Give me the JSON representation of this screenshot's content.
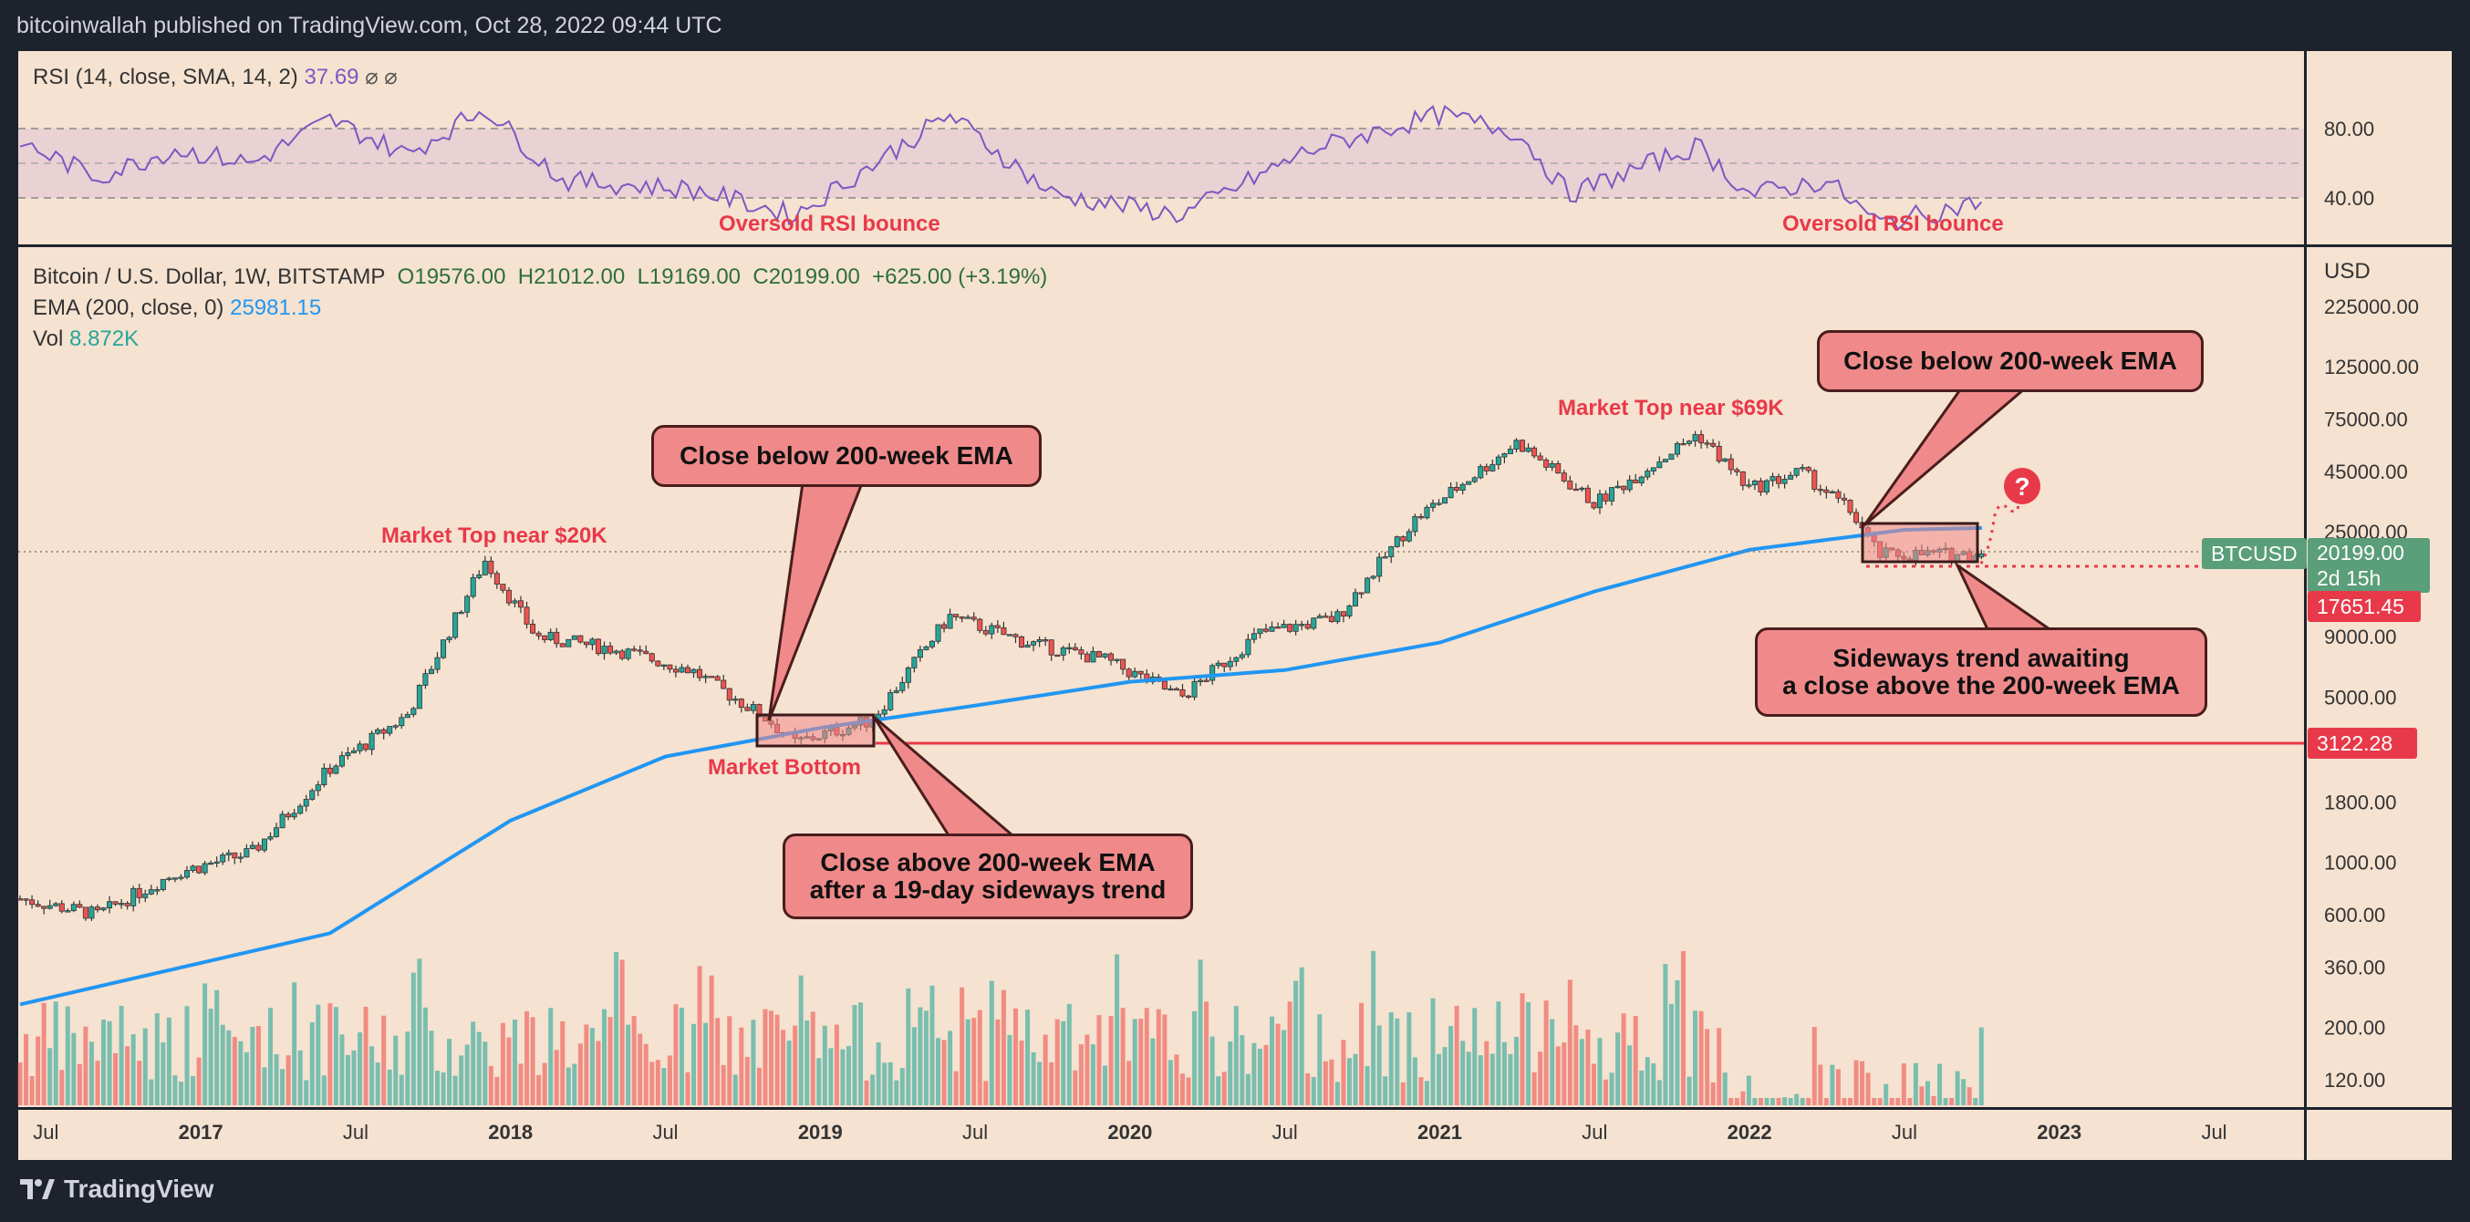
{
  "header": {
    "byline": "bitcoinwallah published on TradingView.com, Oct 28, 2022 09:44 UTC"
  },
  "rsi_panel": {
    "legend": "RSI (14, close, SMA, 14, 2)",
    "value": "37.69",
    "extra": "⌀ ⌀",
    "ticks": [
      "80.00",
      "40.00"
    ],
    "labels": [
      "Oversold RSI bounce",
      "Oversold RSI bounce"
    ]
  },
  "main_panel": {
    "symbol": "Bitcoin / U.S. Dollar, 1W, BITSTAMP",
    "open": "O19576.00",
    "high": "H21012.00",
    "low": "L19169.00",
    "close": "C20199.00",
    "change": "+625.00 (+3.19%)",
    "ema_label": "EMA (200, close, 0)",
    "ema_value": "25981.15",
    "vol_label": "Vol",
    "vol_value": "8.872K",
    "currency": "USD"
  },
  "price_tags": {
    "symbol_badge": "BTCUSD",
    "last_price": "20199.00",
    "countdown": "2d 15h",
    "support": "17651.45",
    "bottom_level": "3122.28"
  },
  "annotations": {
    "callout_1": "Close below 200-week EMA",
    "callout_2": "Close below 200-week EMA",
    "callout_3_line1": "Close above 200-week EMA",
    "callout_3_line2": "after a 19-day sideways trend",
    "callout_4_line1": "Sideways trend awaiting",
    "callout_4_line2": "a close above the 200-week EMA",
    "top_20k": "Market Top near $20K",
    "top_69k": "Market Top near $69K",
    "bottom": "Market Bottom",
    "question": "?"
  },
  "footer": {
    "brand": "TradingView"
  },
  "colors": {
    "background": "#f5e2d0",
    "bull": "#26a69a",
    "bear": "#ef5350",
    "ema": "#2196f3",
    "rsi": "#7e57c2",
    "annotation_red": "#e8394a",
    "callout_fill": "#f08a8a"
  },
  "chart_data": {
    "type": "candlestick",
    "title": "Bitcoin / U.S. Dollar, 1W, BITSTAMP",
    "y_scale": "log",
    "y_ticks": [
      "225000.00",
      "125000.00",
      "75000.00",
      "45000.00",
      "25000.00",
      "9000.00",
      "5000.00",
      "1800.00",
      "1000.00",
      "600.00",
      "360.00",
      "200.00",
      "120.00"
    ],
    "x_ticks": [
      "Jul",
      "2017",
      "Jul",
      "2018",
      "Jul",
      "2019",
      "Jul",
      "2020",
      "Jul",
      "2021",
      "Jul",
      "2022",
      "Jul",
      "2023",
      "Jul"
    ],
    "price_anchors": [
      {
        "date": "2016-06",
        "price": 700
      },
      {
        "date": "2016-09",
        "price": 600
      },
      {
        "date": "2016-12",
        "price": 900
      },
      {
        "date": "2017-03",
        "price": 1100
      },
      {
        "date": "2017-06",
        "price": 2500
      },
      {
        "date": "2017-09",
        "price": 4200
      },
      {
        "date": "2017-12",
        "price": 19000
      },
      {
        "date": "2018-02",
        "price": 9000
      },
      {
        "date": "2018-05",
        "price": 8000
      },
      {
        "date": "2018-08",
        "price": 6500
      },
      {
        "date": "2018-11",
        "price": 4000
      },
      {
        "date": "2018-12",
        "price": 3200
      },
      {
        "date": "2019-03",
        "price": 4000
      },
      {
        "date": "2019-06",
        "price": 11000
      },
      {
        "date": "2019-09",
        "price": 8500
      },
      {
        "date": "2019-12",
        "price": 7200
      },
      {
        "date": "2020-03",
        "price": 5000
      },
      {
        "date": "2020-06",
        "price": 9300
      },
      {
        "date": "2020-09",
        "price": 10800
      },
      {
        "date": "2020-12",
        "price": 28000
      },
      {
        "date": "2021-04",
        "price": 60000
      },
      {
        "date": "2021-07",
        "price": 33000
      },
      {
        "date": "2021-11",
        "price": 65000
      },
      {
        "date": "2022-01",
        "price": 38000
      },
      {
        "date": "2022-03",
        "price": 45000
      },
      {
        "date": "2022-05",
        "price": 30000
      },
      {
        "date": "2022-06",
        "price": 20000
      },
      {
        "date": "2022-10",
        "price": 20199
      }
    ],
    "ema200": [
      {
        "date": "2016-06",
        "price": 250
      },
      {
        "date": "2017-06",
        "price": 500
      },
      {
        "date": "2018-01",
        "price": 1500
      },
      {
        "date": "2018-07",
        "price": 2800
      },
      {
        "date": "2019-01",
        "price": 3700
      },
      {
        "date": "2019-07",
        "price": 4600
      },
      {
        "date": "2020-01",
        "price": 5800
      },
      {
        "date": "2020-07",
        "price": 6500
      },
      {
        "date": "2021-01",
        "price": 8500
      },
      {
        "date": "2021-07",
        "price": 14000
      },
      {
        "date": "2022-01",
        "price": 21000
      },
      {
        "date": "2022-07",
        "price": 25500
      },
      {
        "date": "2022-10",
        "price": 25981
      }
    ],
    "rsi_anchors": [
      {
        "date": "2016-06",
        "value": 72
      },
      {
        "date": "2016-09",
        "value": 52
      },
      {
        "date": "2016-12",
        "value": 68
      },
      {
        "date": "2017-03",
        "value": 60
      },
      {
        "date": "2017-06",
        "value": 85
      },
      {
        "date": "2017-09",
        "value": 65
      },
      {
        "date": "2017-12",
        "value": 92
      },
      {
        "date": "2018-03",
        "value": 50
      },
      {
        "date": "2018-08",
        "value": 45
      },
      {
        "date": "2018-12",
        "value": 30
      },
      {
        "date": "2019-06",
        "value": 88
      },
      {
        "date": "2019-10",
        "value": 42
      },
      {
        "date": "2020-03",
        "value": 30
      },
      {
        "date": "2020-08",
        "value": 68
      },
      {
        "date": "2021-01",
        "value": 88
      },
      {
        "date": "2021-04",
        "value": 78
      },
      {
        "date": "2021-06",
        "value": 42
      },
      {
        "date": "2021-11",
        "value": 70
      },
      {
        "date": "2022-01",
        "value": 42
      },
      {
        "date": "2022-04",
        "value": 50
      },
      {
        "date": "2022-06",
        "value": 25
      },
      {
        "date": "2022-10",
        "value": 37.69
      }
    ],
    "ohlc_last": {
      "open": 19576,
      "high": 21012,
      "low": 19169,
      "close": 20199
    }
  }
}
